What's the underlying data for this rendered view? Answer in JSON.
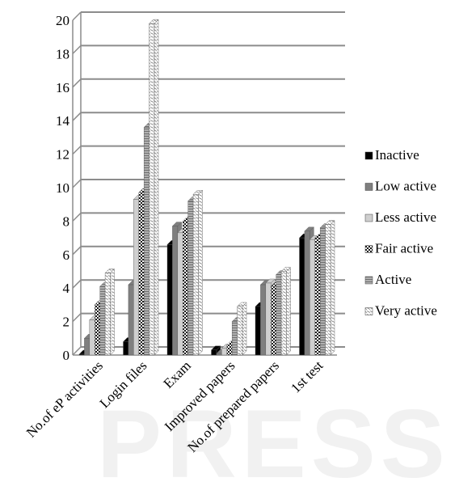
{
  "chart_data": {
    "type": "bar",
    "categories": [
      "No.of eP activities",
      "Login files",
      "Exam",
      "Improved papers",
      "No.of prepared papers",
      "1st test"
    ],
    "series": [
      {
        "name": "Inactive",
        "values": [
          0.05,
          0.8,
          6.6,
          0.3,
          2.9,
          7.0
        ]
      },
      {
        "name": "Low active",
        "values": [
          1.0,
          4.2,
          7.7,
          0.1,
          4.2,
          7.4
        ]
      },
      {
        "name": "Less active",
        "values": [
          2.1,
          9.3,
          7.3,
          0.4,
          4.3,
          6.9
        ]
      },
      {
        "name": "Fair active",
        "values": [
          3.0,
          9.7,
          8.0,
          0.6,
          4.1,
          7.0
        ]
      },
      {
        "name": "Active",
        "values": [
          4.1,
          13.6,
          9.2,
          2.0,
          4.8,
          7.6
        ]
      },
      {
        "name": "Very active",
        "values": [
          4.9,
          19.8,
          9.6,
          2.9,
          5.0,
          7.8
        ]
      }
    ],
    "yticks": [
      "0",
      "2",
      "4",
      "6",
      "8",
      "10",
      "12",
      "14",
      "16",
      "18",
      "20"
    ],
    "ylim": [
      0,
      20
    ],
    "grid": true,
    "legend": "right",
    "colors": {
      "Inactive": "#000000",
      "Low active": "#808080",
      "Less active": "#c8c8c8",
      "Fair active": "#3a3a3a",
      "Active": "#9a9a9a",
      "Very active": "#ffffff"
    },
    "gridline_color": "#8c8c8c"
  },
  "watermark": "PRESS"
}
